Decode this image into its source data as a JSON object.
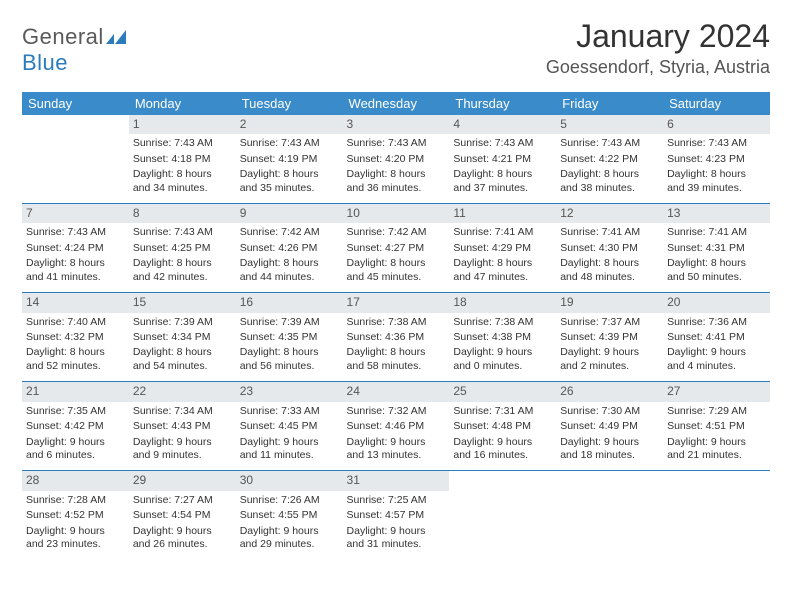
{
  "logo": {
    "word1": "General",
    "word2": "Blue"
  },
  "title": "January 2024",
  "location": "Goessendorf, Styria, Austria",
  "colors": {
    "header_bg": "#3a8bc9",
    "header_text": "#ffffff",
    "daynum_bg": "#e6e9ec",
    "row_divider": "#2b7bbd",
    "logo_gray": "#5a5a5a",
    "logo_blue": "#2b7bbd"
  },
  "day_labels": [
    "Sunday",
    "Monday",
    "Tuesday",
    "Wednesday",
    "Thursday",
    "Friday",
    "Saturday"
  ],
  "weeks": [
    [
      {
        "n": "",
        "sr": "",
        "ss": "",
        "dl": ""
      },
      {
        "n": "1",
        "sr": "Sunrise: 7:43 AM",
        "ss": "Sunset: 4:18 PM",
        "dl": "Daylight: 8 hours and 34 minutes."
      },
      {
        "n": "2",
        "sr": "Sunrise: 7:43 AM",
        "ss": "Sunset: 4:19 PM",
        "dl": "Daylight: 8 hours and 35 minutes."
      },
      {
        "n": "3",
        "sr": "Sunrise: 7:43 AM",
        "ss": "Sunset: 4:20 PM",
        "dl": "Daylight: 8 hours and 36 minutes."
      },
      {
        "n": "4",
        "sr": "Sunrise: 7:43 AM",
        "ss": "Sunset: 4:21 PM",
        "dl": "Daylight: 8 hours and 37 minutes."
      },
      {
        "n": "5",
        "sr": "Sunrise: 7:43 AM",
        "ss": "Sunset: 4:22 PM",
        "dl": "Daylight: 8 hours and 38 minutes."
      },
      {
        "n": "6",
        "sr": "Sunrise: 7:43 AM",
        "ss": "Sunset: 4:23 PM",
        "dl": "Daylight: 8 hours and 39 minutes."
      }
    ],
    [
      {
        "n": "7",
        "sr": "Sunrise: 7:43 AM",
        "ss": "Sunset: 4:24 PM",
        "dl": "Daylight: 8 hours and 41 minutes."
      },
      {
        "n": "8",
        "sr": "Sunrise: 7:43 AM",
        "ss": "Sunset: 4:25 PM",
        "dl": "Daylight: 8 hours and 42 minutes."
      },
      {
        "n": "9",
        "sr": "Sunrise: 7:42 AM",
        "ss": "Sunset: 4:26 PM",
        "dl": "Daylight: 8 hours and 44 minutes."
      },
      {
        "n": "10",
        "sr": "Sunrise: 7:42 AM",
        "ss": "Sunset: 4:27 PM",
        "dl": "Daylight: 8 hours and 45 minutes."
      },
      {
        "n": "11",
        "sr": "Sunrise: 7:41 AM",
        "ss": "Sunset: 4:29 PM",
        "dl": "Daylight: 8 hours and 47 minutes."
      },
      {
        "n": "12",
        "sr": "Sunrise: 7:41 AM",
        "ss": "Sunset: 4:30 PM",
        "dl": "Daylight: 8 hours and 48 minutes."
      },
      {
        "n": "13",
        "sr": "Sunrise: 7:41 AM",
        "ss": "Sunset: 4:31 PM",
        "dl": "Daylight: 8 hours and 50 minutes."
      }
    ],
    [
      {
        "n": "14",
        "sr": "Sunrise: 7:40 AM",
        "ss": "Sunset: 4:32 PM",
        "dl": "Daylight: 8 hours and 52 minutes."
      },
      {
        "n": "15",
        "sr": "Sunrise: 7:39 AM",
        "ss": "Sunset: 4:34 PM",
        "dl": "Daylight: 8 hours and 54 minutes."
      },
      {
        "n": "16",
        "sr": "Sunrise: 7:39 AM",
        "ss": "Sunset: 4:35 PM",
        "dl": "Daylight: 8 hours and 56 minutes."
      },
      {
        "n": "17",
        "sr": "Sunrise: 7:38 AM",
        "ss": "Sunset: 4:36 PM",
        "dl": "Daylight: 8 hours and 58 minutes."
      },
      {
        "n": "18",
        "sr": "Sunrise: 7:38 AM",
        "ss": "Sunset: 4:38 PM",
        "dl": "Daylight: 9 hours and 0 minutes."
      },
      {
        "n": "19",
        "sr": "Sunrise: 7:37 AM",
        "ss": "Sunset: 4:39 PM",
        "dl": "Daylight: 9 hours and 2 minutes."
      },
      {
        "n": "20",
        "sr": "Sunrise: 7:36 AM",
        "ss": "Sunset: 4:41 PM",
        "dl": "Daylight: 9 hours and 4 minutes."
      }
    ],
    [
      {
        "n": "21",
        "sr": "Sunrise: 7:35 AM",
        "ss": "Sunset: 4:42 PM",
        "dl": "Daylight: 9 hours and 6 minutes."
      },
      {
        "n": "22",
        "sr": "Sunrise: 7:34 AM",
        "ss": "Sunset: 4:43 PM",
        "dl": "Daylight: 9 hours and 9 minutes."
      },
      {
        "n": "23",
        "sr": "Sunrise: 7:33 AM",
        "ss": "Sunset: 4:45 PM",
        "dl": "Daylight: 9 hours and 11 minutes."
      },
      {
        "n": "24",
        "sr": "Sunrise: 7:32 AM",
        "ss": "Sunset: 4:46 PM",
        "dl": "Daylight: 9 hours and 13 minutes."
      },
      {
        "n": "25",
        "sr": "Sunrise: 7:31 AM",
        "ss": "Sunset: 4:48 PM",
        "dl": "Daylight: 9 hours and 16 minutes."
      },
      {
        "n": "26",
        "sr": "Sunrise: 7:30 AM",
        "ss": "Sunset: 4:49 PM",
        "dl": "Daylight: 9 hours and 18 minutes."
      },
      {
        "n": "27",
        "sr": "Sunrise: 7:29 AM",
        "ss": "Sunset: 4:51 PM",
        "dl": "Daylight: 9 hours and 21 minutes."
      }
    ],
    [
      {
        "n": "28",
        "sr": "Sunrise: 7:28 AM",
        "ss": "Sunset: 4:52 PM",
        "dl": "Daylight: 9 hours and 23 minutes."
      },
      {
        "n": "29",
        "sr": "Sunrise: 7:27 AM",
        "ss": "Sunset: 4:54 PM",
        "dl": "Daylight: 9 hours and 26 minutes."
      },
      {
        "n": "30",
        "sr": "Sunrise: 7:26 AM",
        "ss": "Sunset: 4:55 PM",
        "dl": "Daylight: 9 hours and 29 minutes."
      },
      {
        "n": "31",
        "sr": "Sunrise: 7:25 AM",
        "ss": "Sunset: 4:57 PM",
        "dl": "Daylight: 9 hours and 31 minutes."
      },
      {
        "n": "",
        "sr": "",
        "ss": "",
        "dl": ""
      },
      {
        "n": "",
        "sr": "",
        "ss": "",
        "dl": ""
      },
      {
        "n": "",
        "sr": "",
        "ss": "",
        "dl": ""
      }
    ]
  ]
}
